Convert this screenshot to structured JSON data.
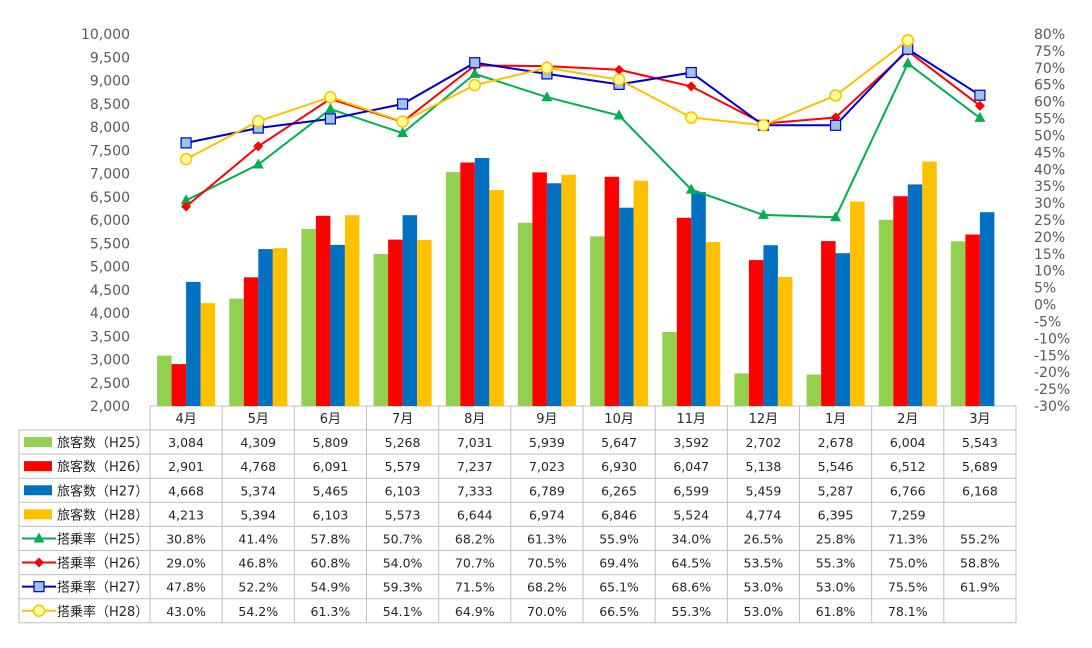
{
  "chart_data": {
    "type": "bar+line",
    "title": "",
    "categories": [
      "4月",
      "5月",
      "6月",
      "7月",
      "8月",
      "9月",
      "10月",
      "11月",
      "12月",
      "1月",
      "2月",
      "3月"
    ],
    "y_left": {
      "min": 2000,
      "max": 10000,
      "step": 500,
      "tick_labels": [
        "2,000",
        "2,500",
        "3,000",
        "3,500",
        "4,000",
        "4,500",
        "5,000",
        "5,500",
        "6,000",
        "6,500",
        "7,000",
        "7,500",
        "8,000",
        "8,500",
        "9,000",
        "9,500",
        "10,000"
      ]
    },
    "y_right": {
      "min": -30,
      "max": 80,
      "step": 5,
      "tick_labels": [
        "-30%",
        "-25%",
        "-20%",
        "-15%",
        "-10%",
        "-5%",
        "0%",
        "5%",
        "10%",
        "15%",
        "20%",
        "25%",
        "30%",
        "35%",
        "40%",
        "45%",
        "50%",
        "55%",
        "60%",
        "65%",
        "70%",
        "75%",
        "80%"
      ]
    },
    "bar_series": [
      {
        "name": "旅客数（H25）",
        "color": "#92D050",
        "values": [
          3084,
          4309,
          5809,
          5268,
          7031,
          5939,
          5647,
          3592,
          2702,
          2678,
          6004,
          5543
        ],
        "labels": [
          "3,084",
          "4,309",
          "5,809",
          "5,268",
          "7,031",
          "5,939",
          "5,647",
          "3,592",
          "2,702",
          "2,678",
          "6,004",
          "5,543"
        ]
      },
      {
        "name": "旅客数（H26）",
        "color": "#FF0000",
        "values": [
          2901,
          4768,
          6091,
          5579,
          7237,
          7023,
          6930,
          6047,
          5138,
          5546,
          6512,
          5689
        ],
        "labels": [
          "2,901",
          "4,768",
          "6,091",
          "5,579",
          "7,237",
          "7,023",
          "6,930",
          "6,047",
          "5,138",
          "5,546",
          "6,512",
          "5,689"
        ]
      },
      {
        "name": "旅客数（H27）",
        "color": "#0070C0",
        "values": [
          4668,
          5374,
          5465,
          6103,
          7333,
          6789,
          6265,
          6599,
          5459,
          5287,
          6766,
          6168
        ],
        "labels": [
          "4,668",
          "5,374",
          "5,465",
          "6,103",
          "7,333",
          "6,789",
          "6,265",
          "6,599",
          "5,459",
          "5,287",
          "6,766",
          "6,168"
        ]
      },
      {
        "name": "旅客数（H28）",
        "color": "#FFC000",
        "values": [
          4213,
          5394,
          6103,
          5573,
          6644,
          6974,
          6846,
          5524,
          4774,
          6395,
          7259,
          null
        ],
        "labels": [
          "4,213",
          "5,394",
          "6,103",
          "5,573",
          "6,644",
          "6,974",
          "6,846",
          "5,524",
          "4,774",
          "6,395",
          "7,259",
          ""
        ]
      }
    ],
    "line_series": [
      {
        "name": "搭乗率（H25）",
        "color": "#00B050",
        "marker": "triangle",
        "values": [
          30.8,
          41.4,
          57.8,
          50.7,
          68.2,
          61.3,
          55.9,
          34.0,
          26.5,
          25.8,
          71.3,
          55.2
        ],
        "labels": [
          "30.8%",
          "41.4%",
          "57.8%",
          "50.7%",
          "68.2%",
          "61.3%",
          "55.9%",
          "34.0%",
          "26.5%",
          "25.8%",
          "71.3%",
          "55.2%"
        ]
      },
      {
        "name": "搭乗率（H26）",
        "color": "#FF0000",
        "marker": "diamond",
        "values": [
          29.0,
          46.8,
          60.8,
          54.0,
          70.7,
          70.5,
          69.4,
          64.5,
          53.5,
          55.3,
          75.0,
          58.8
        ],
        "labels": [
          "29.0%",
          "46.8%",
          "60.8%",
          "54.0%",
          "70.7%",
          "70.5%",
          "69.4%",
          "64.5%",
          "53.5%",
          "55.3%",
          "75.0%",
          "58.8%"
        ]
      },
      {
        "name": "搭乗率（H27）",
        "color": "#0000CC",
        "marker": "square",
        "values": [
          47.8,
          52.2,
          54.9,
          59.3,
          71.5,
          68.2,
          65.1,
          68.6,
          53.0,
          53.0,
          75.5,
          61.9
        ],
        "labels": [
          "47.8%",
          "52.2%",
          "54.9%",
          "59.3%",
          "71.5%",
          "68.2%",
          "65.1%",
          "68.6%",
          "53.0%",
          "53.0%",
          "75.5%",
          "61.9%"
        ]
      },
      {
        "name": "搭乗率（H28）",
        "color": "#FFC000",
        "marker": "circle",
        "values": [
          43.0,
          54.2,
          61.3,
          54.1,
          64.9,
          70.0,
          66.5,
          55.3,
          53.0,
          61.8,
          78.1,
          null
        ],
        "labels": [
          "43.0%",
          "54.2%",
          "61.3%",
          "54.1%",
          "64.9%",
          "70.0%",
          "66.5%",
          "55.3%",
          "53.0%",
          "61.8%",
          "78.1%",
          ""
        ]
      }
    ],
    "grid": false,
    "legend": "data-table"
  }
}
